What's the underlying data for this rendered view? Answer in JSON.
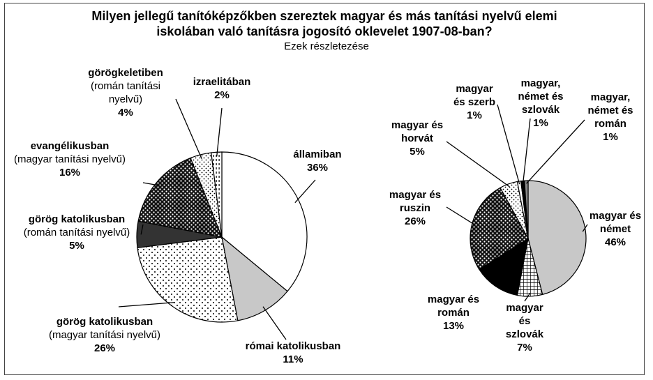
{
  "title": "Milyen jellegű tanítóképzőkben szereztek magyar és más tanítási nyelvű elemi iskolában való tanításra jogosító oklevelet 1907-08-ban?",
  "subtitle": "Ezek részletezése",
  "chart_data": [
    {
      "type": "pie",
      "categories": [
        "államiban",
        "római katolikusban",
        "görög katolikusban",
        "görög katolikusban",
        "evangélikusban",
        "görögkeletiben",
        "izraelitában"
      ],
      "notes": [
        null,
        null,
        "(magyar tanítási nyelvű)",
        "(román tanítási nyelvű)",
        "(magyar tanítási nyelvű)",
        "(román tanítási nyelvű)",
        null
      ],
      "values": [
        36,
        11,
        26,
        5,
        16,
        4,
        2
      ],
      "value_labels": [
        "36%",
        "11%",
        "26%",
        "5%",
        "16%",
        "4%",
        "2%"
      ],
      "colors": [
        "#ffffff",
        "#c8c8c8",
        "#ffffff",
        "#333333",
        "#111111",
        "#ffffff",
        "#ffffff"
      ],
      "patterns": [
        null,
        null,
        "sparse",
        null,
        "darkdots",
        "dots",
        "dashes"
      ]
    },
    {
      "type": "pie",
      "categories": [
        "magyar és német",
        "magyar és szlovák",
        "magyar és román",
        "magyar és ruszin",
        "magyar és horvát",
        "magyar és szerb",
        "magyar, német és szlovák",
        "magyar, német és román"
      ],
      "values": [
        46,
        7,
        13,
        26,
        5,
        1,
        1,
        1
      ],
      "value_labels": [
        "46%",
        "7%",
        "13%",
        "26%",
        "5%",
        "1%",
        "1%",
        "1%"
      ],
      "colors": [
        "#c8c8c8",
        "#ffffff",
        "#000000",
        "#111111",
        "#ffffff",
        "#ffffff",
        "#000000",
        "#888888"
      ],
      "patterns": [
        null,
        "checker",
        null,
        "darkdots",
        "dots",
        null,
        null,
        null
      ]
    }
  ]
}
